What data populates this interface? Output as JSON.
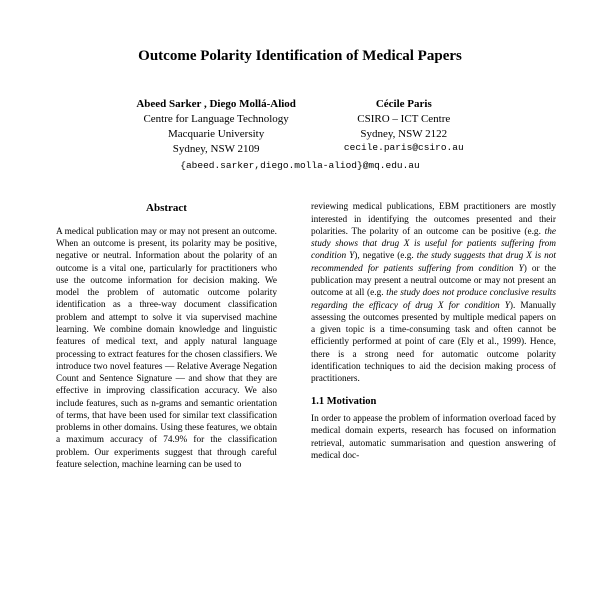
{
  "title": "Outcome Polarity Identification of Medical Papers",
  "authors_left": {
    "names": "Abeed Sarker , Diego Mollá-Aliod",
    "line1": "Centre for Language Technology",
    "line2": "Macquarie University",
    "line3": "Sydney, NSW 2109"
  },
  "authors_right": {
    "names": "Cécile Paris",
    "line1": "CSIRO – ICT Centre",
    "line2": "Sydney, NSW 2122",
    "email": "cecile.paris@csiro.au"
  },
  "email_left": "{abeed.sarker,diego.molla-aliod}@mq.edu.au",
  "abstract_heading": "Abstract",
  "abstract_body": "A medical publication may or may not present an outcome. When an outcome is present, its polarity may be positive, negative or neutral. Information about the polarity of an outcome is a vital one, particularly for practitioners who use the outcome information for decision making. We model the problem of automatic outcome polarity identification as a three-way document classification problem and attempt to solve it via supervised machine learning. We combine domain knowledge and linguistic features of medical text, and apply natural language processing to extract features for the chosen classifiers. We introduce two novel features — Relative Average Negation Count and Sentence Signature — and show that they are effective in improving classification accuracy. We also include features, such as n-grams and semantic orientation of terms, that have been used for similar text classification problems in other domains. Using these features, we obtain a maximum accuracy of 74.9% for the classification problem. Our experiments suggest that through careful feature selection, machine learning can be used to",
  "right_p1a": "reviewing medical publications, EBM practitioners are mostly interested in identifying the outcomes presented and their polarities. The polarity of an outcome can be positive (e.g. ",
  "right_p1_i1": "the study shows that drug X is useful for patients suffering from condition Y",
  "right_p1b": "), negative (e.g. ",
  "right_p1_i2": "the study suggests that drug X is not recommended for patients suffering from condition Y",
  "right_p1c": ") or the publication may present a neutral outcome or may not present an outcome at all (e.g. ",
  "right_p1_i3": "the study does not produce conclusive results regarding the efficacy of drug X for condition Y",
  "right_p1d": "). Manually assessing the outcomes presented by multiple medical papers on a given topic is a time-consuming task and often cannot be efficiently performed at point of care (Ely et al., 1999). Hence, there is a strong need for automatic outcome polarity identification techniques to aid the decision making process of practitioners.",
  "section_1_1": "1.1   Motivation",
  "right_p2": "In order to appease the problem of information overload faced by medical domain experts, research has focused on information retrieval, automatic summarisation and question answering of medical doc-"
}
